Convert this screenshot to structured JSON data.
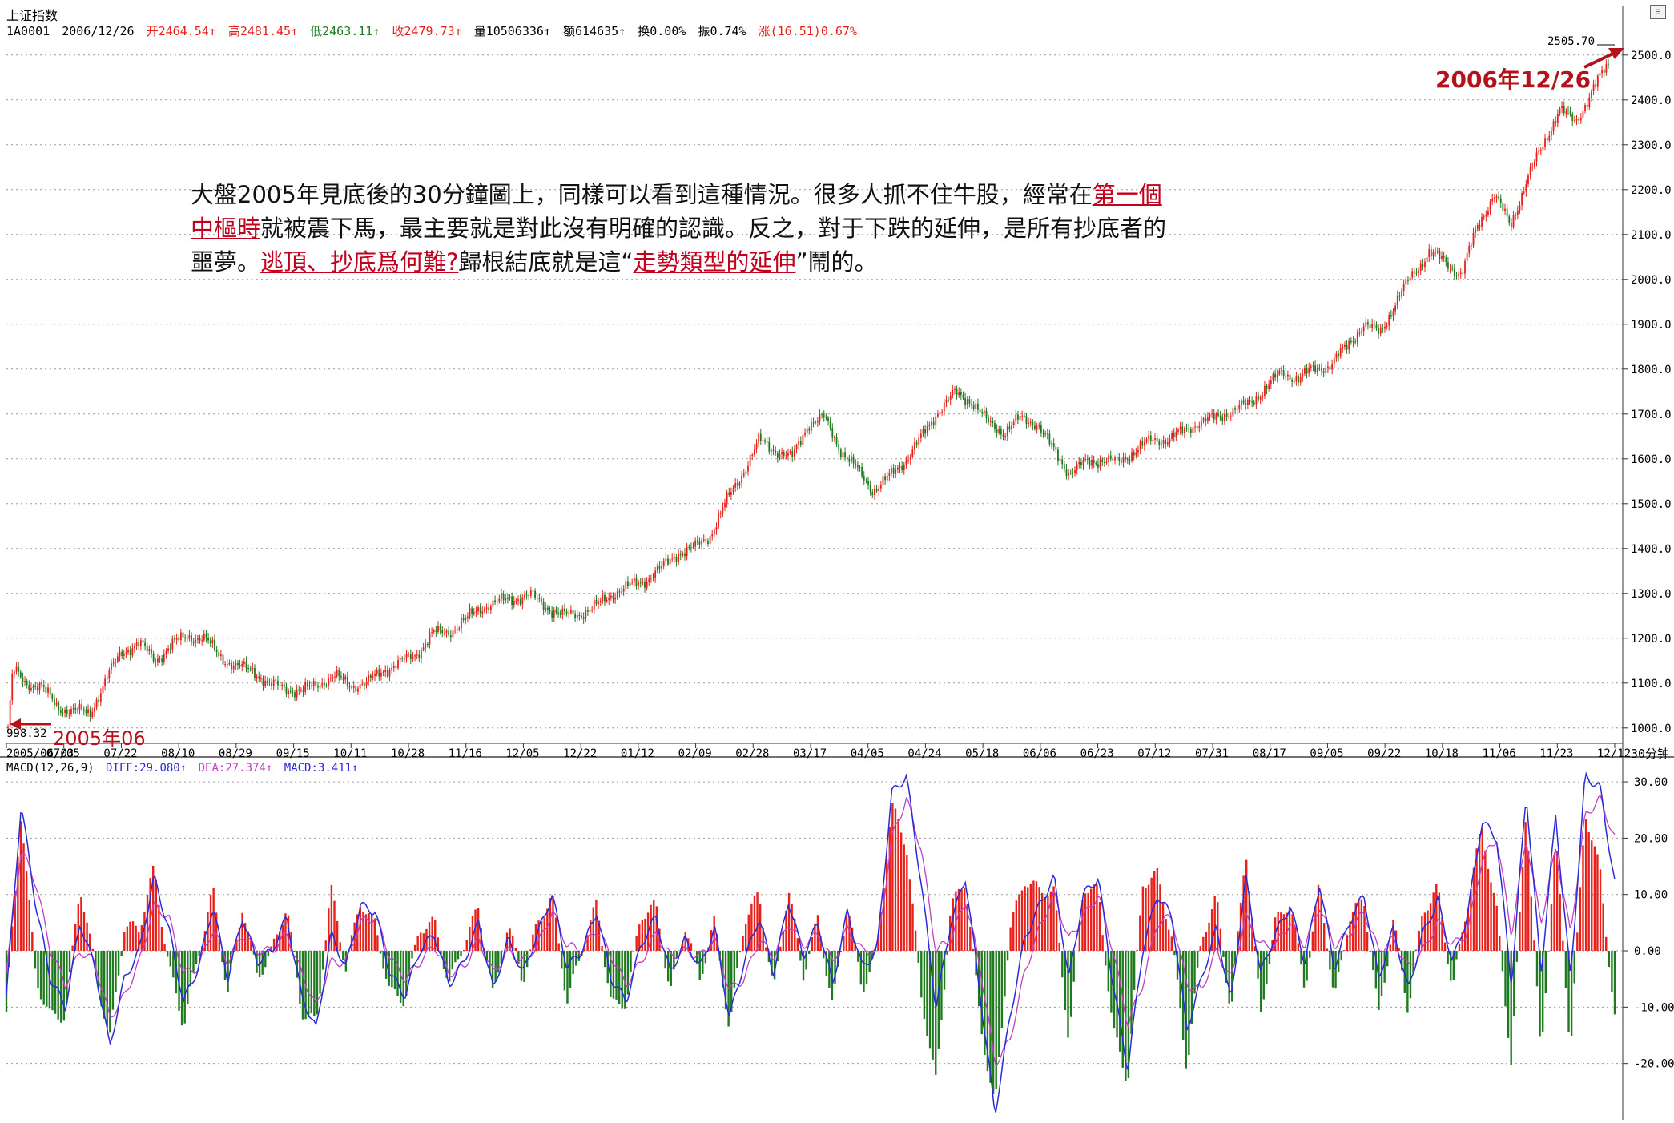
{
  "header": {
    "title": "上证指数",
    "code": "1A0001",
    "date": "2006/12/26",
    "open": "开2464.54↑",
    "high": "高2481.45↑",
    "low": "低2463.11↑",
    "close": "收2479.73↑",
    "volume": "量10506336↑",
    "amount": "额614635↑",
    "turnover": "换0.00%",
    "amplitude": "振0.74%",
    "change": "涨(16.51)0.67%"
  },
  "colors": {
    "up": "#e8201a",
    "down": "#1f7a1f",
    "diff": "#2b2bd6",
    "dea": "#c23fc2",
    "grid": "#9a9a9a",
    "annotation": "#b3121d"
  },
  "note": {
    "text_1": "大盤2005年見底後的30分鐘圖上，同樣可以看到這種情況。很多人抓不住牛股，經常在",
    "link_1": "第一個中樞時",
    "text_2": "就被震下馬，最主要就是對此沒有明確的認識。反之，對于下跌的延伸，是所有抄底者的噩夢。",
    "link_2": "逃頂、抄底爲何難?",
    "text_3": "歸根結底就是這“",
    "link_3": "走勢類型的延伸",
    "text_4": "”鬧的。"
  },
  "annotations": {
    "end_label": "2006年12/26",
    "start_label": "2005年06",
    "max_label": "2505.70",
    "min_label": "998.32"
  },
  "timeframe_label": "30分钟",
  "toolbar_icon": "window-toggle-icon",
  "macd_header": {
    "name": "MACD(12,26,9)",
    "diff": "DIFF:29.080↑",
    "dea": "DEA:27.374↑",
    "macd": "MACD:3.411↑"
  },
  "chart_data": [
    {
      "type": "candlestick",
      "title": "上证指数",
      "x_ticks": [
        "2005/06/03",
        "07/05",
        "07/22",
        "08/10",
        "08/29",
        "09/15",
        "10/11",
        "10/28",
        "11/16",
        "12/05",
        "12/22",
        "01/12",
        "02/09",
        "02/28",
        "03/17",
        "04/05",
        "04/24",
        "05/18",
        "06/06",
        "06/23",
        "07/12",
        "07/31",
        "08/17",
        "09/05",
        "09/22",
        "10/18",
        "11/06",
        "11/23",
        "12/12"
      ],
      "y_ticks": [
        "1000.0",
        "1100.0",
        "1200.0",
        "1300.0",
        "1400.0",
        "1500.0",
        "1600.0",
        "1700.0",
        "1800.0",
        "1900.0",
        "2000.0",
        "2100.0",
        "2200.0",
        "2300.0",
        "2400.0",
        "2500.0"
      ],
      "ylim": [
        980,
        2530
      ],
      "grid": true,
      "close_path": [
        [
          0,
          1000
        ],
        [
          0.3,
          1130
        ],
        [
          1,
          1100
        ],
        [
          2,
          1095
        ],
        [
          3,
          1045
        ],
        [
          4,
          1040
        ],
        [
          5,
          1030
        ],
        [
          6,
          1110
        ],
        [
          7,
          1170
        ],
        [
          8,
          1190
        ],
        [
          9,
          1150
        ],
        [
          10,
          1185
        ],
        [
          11,
          1205
        ],
        [
          12,
          1200
        ],
        [
          13,
          1160
        ],
        [
          14,
          1135
        ],
        [
          15,
          1130
        ],
        [
          16,
          1095
        ],
        [
          17,
          1090
        ],
        [
          18,
          1080
        ],
        [
          19,
          1100
        ],
        [
          20,
          1115
        ],
        [
          21,
          1095
        ],
        [
          22,
          1100
        ],
        [
          23,
          1130
        ],
        [
          24,
          1145
        ],
        [
          25,
          1165
        ],
        [
          26,
          1210
        ],
        [
          27,
          1215
        ],
        [
          28,
          1240
        ],
        [
          29,
          1270
        ],
        [
          30,
          1280
        ],
        [
          31,
          1290
        ],
        [
          32,
          1295
        ],
        [
          33,
          1270
        ],
        [
          34,
          1250
        ],
        [
          35,
          1255
        ],
        [
          36,
          1270
        ],
        [
          37,
          1300
        ],
        [
          38,
          1315
        ],
        [
          39,
          1330
        ],
        [
          40,
          1355
        ],
        [
          41,
          1390
        ],
        [
          42,
          1400
        ],
        [
          43,
          1430
        ],
        [
          44,
          1505
        ],
        [
          45,
          1570
        ],
        [
          46,
          1640
        ],
        [
          47,
          1620
        ],
        [
          48,
          1600
        ],
        [
          49,
          1680
        ],
        [
          50,
          1690
        ],
        [
          51,
          1620
        ],
        [
          52,
          1575
        ],
        [
          53,
          1530
        ],
        [
          54,
          1560
        ],
        [
          55,
          1600
        ],
        [
          56,
          1650
        ],
        [
          57,
          1710
        ],
        [
          58,
          1745
        ],
        [
          59,
          1730
        ],
        [
          60,
          1680
        ],
        [
          61,
          1660
        ],
        [
          62,
          1690
        ],
        [
          63,
          1680
        ],
        [
          64,
          1620
        ],
        [
          65,
          1570
        ],
        [
          66,
          1590
        ],
        [
          67,
          1600
        ],
        [
          68,
          1590
        ],
        [
          69,
          1620
        ],
        [
          70,
          1640
        ],
        [
          71,
          1645
        ],
        [
          72,
          1660
        ],
        [
          73,
          1685
        ],
        [
          74,
          1690
        ],
        [
          75,
          1710
        ],
        [
          76,
          1720
        ],
        [
          77,
          1760
        ],
        [
          78,
          1790
        ],
        [
          79,
          1780
        ],
        [
          80,
          1800
        ],
        [
          81,
          1810
        ],
        [
          82,
          1850
        ],
        [
          83,
          1900
        ],
        [
          84,
          1880
        ],
        [
          85,
          1950
        ],
        [
          86,
          2010
        ],
        [
          87,
          2060
        ],
        [
          88,
          2040
        ],
        [
          89,
          2010
        ],
        [
          90,
          2120
        ],
        [
          91,
          2190
        ],
        [
          92,
          2120
        ],
        [
          93,
          2220
        ],
        [
          94,
          2300
        ],
        [
          95,
          2380
        ],
        [
          96,
          2350
        ],
        [
          97,
          2420
        ],
        [
          98,
          2480
        ]
      ],
      "annotations": [
        "2505.70",
        "998.32",
        "2006年12/26",
        "2005年06"
      ]
    },
    {
      "type": "bar",
      "title": "MACD(12,26,9)",
      "y_ticks": [
        "30.00",
        "20.00",
        "10.00",
        "0.00",
        "-10.00",
        "-20.00"
      ],
      "ylim": [
        -30,
        32
      ],
      "series": [
        {
          "name": "DIFF",
          "values": [
            -8,
            26,
            8,
            -5,
            -10,
            5,
            -3,
            -17,
            -5,
            0,
            13,
            4,
            -9,
            -3,
            8,
            -5,
            6,
            -2,
            0,
            6,
            -8,
            -14,
            3,
            -3,
            8,
            7,
            -4,
            -8,
            0,
            3,
            -6,
            -2,
            5,
            -7,
            2,
            -4,
            3,
            10,
            -3,
            0,
            7,
            -5,
            -9,
            1,
            6,
            -4,
            2,
            -3,
            4,
            -12,
            -2,
            6,
            -4,
            9,
            -1,
            5,
            -6,
            7,
            -3,
            0,
            28,
            31,
            12,
            -10,
            5,
            13,
            -8,
            -29,
            -12,
            2,
            8,
            13,
            -5,
            10,
            13,
            -6,
            -21,
            0,
            10,
            6,
            -14,
            -5,
            4,
            -9,
            13,
            -4,
            3,
            8,
            -2,
            12,
            -3,
            5,
            10,
            -5,
            4,
            -7,
            3,
            9,
            -2,
            6,
            23,
            20,
            -6,
            28,
            -4,
            24,
            -5,
            31,
            29,
            12
          ]
        },
        {
          "name": "DEA",
          "values": [
            -4,
            18,
            12,
            0,
            -6,
            0,
            -2,
            -12,
            -8,
            -2,
            8,
            6,
            -4,
            -3,
            4,
            -2,
            3,
            0,
            0,
            3,
            -4,
            -10,
            -2,
            -2,
            5,
            6,
            -1,
            -5,
            -2,
            1,
            -4,
            -3,
            2,
            -4,
            0,
            -2,
            1,
            7,
            1,
            0,
            4,
            -1,
            -6,
            -2,
            3,
            -1,
            0,
            -1,
            2,
            -7,
            -5,
            2,
            -1,
            5,
            1,
            3,
            -2,
            4,
            0,
            0,
            20,
            27,
            18,
            0,
            2,
            9,
            -3,
            -20,
            -16,
            -4,
            4,
            10,
            2,
            6,
            10,
            0,
            -13,
            -6,
            5,
            6,
            -6,
            -7,
            0,
            -5,
            6,
            1,
            1,
            5,
            1,
            8,
            1,
            3,
            7,
            0,
            2,
            -3,
            0,
            5,
            1,
            3,
            16,
            20,
            3,
            20,
            5,
            18,
            3,
            24,
            27,
            20
          ]
        }
      ]
    }
  ]
}
